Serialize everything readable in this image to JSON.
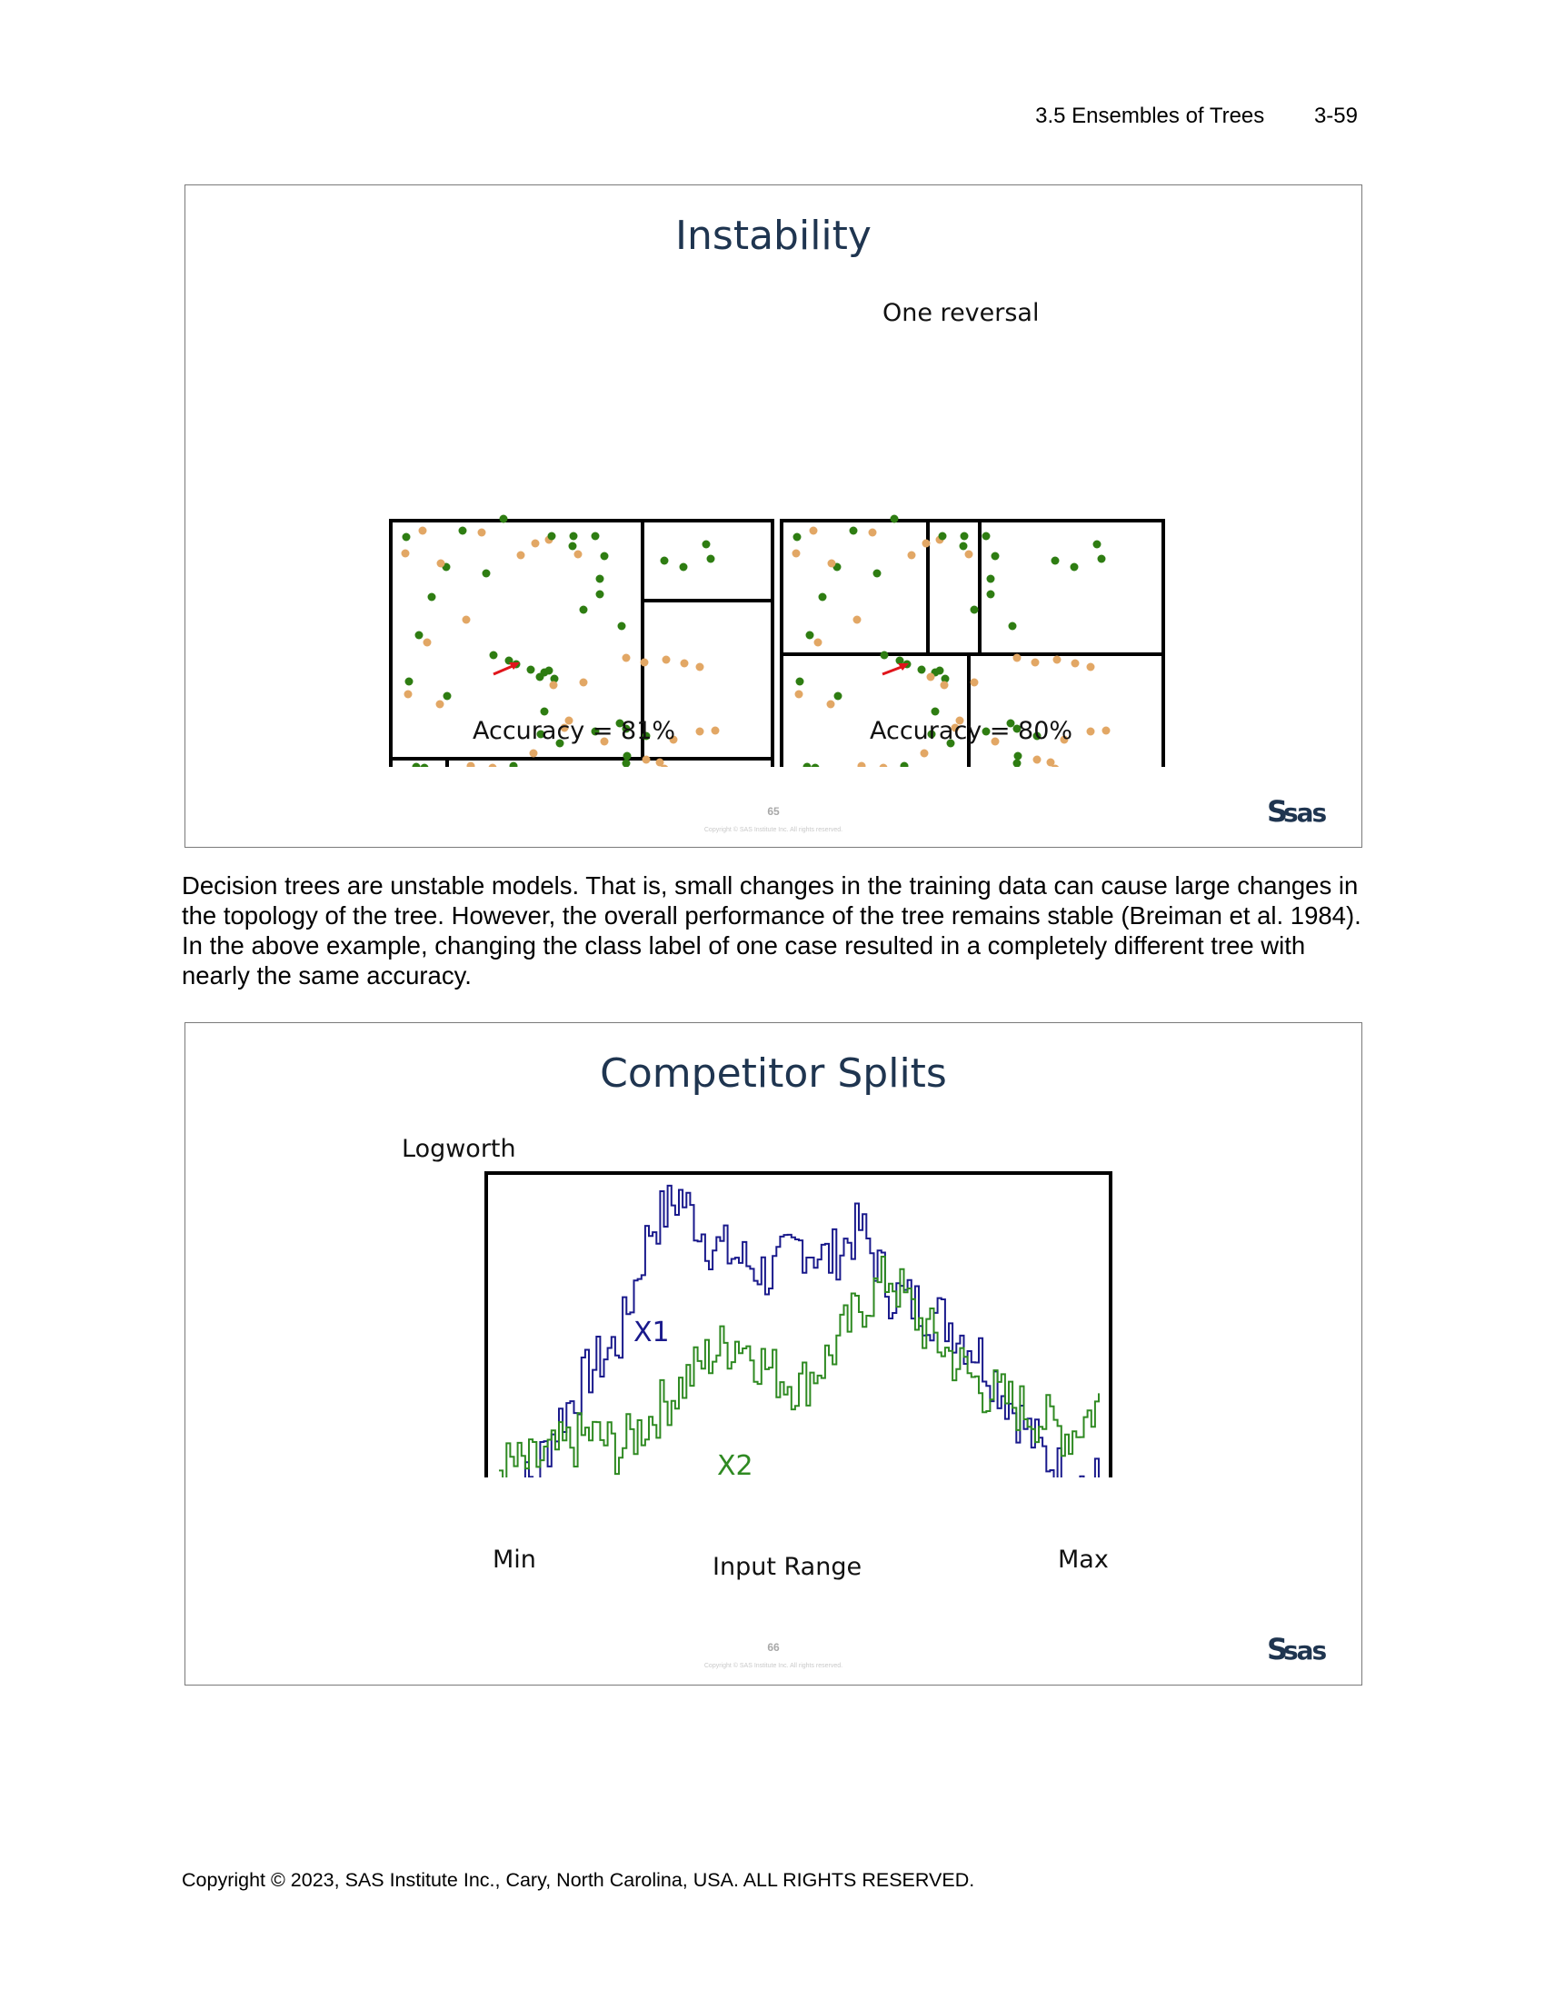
{
  "header": {
    "section": "3.5  Ensembles of Trees",
    "page": "3-59"
  },
  "slide1": {
    "title": "Instability",
    "right_caption": "One reversal",
    "left_accuracy": "Accuracy = 81%",
    "right_accuracy": "Accuracy = 80%",
    "number": "65",
    "copyright": "Copyright © SAS Institute Inc. All rights reserved.",
    "logo_text": "sas"
  },
  "paragraph": "Decision trees are unstable models. That is, small changes in the training data can cause large changes in the topology of the tree. However, the overall performance of the tree remains stable (Breiman et al. 1984). In the above example, changing the class label of one case resulted in a completely different tree with nearly the same accuracy.",
  "slide2": {
    "title": "Competitor Splits",
    "ylabel": "Logworth",
    "xlabel": "Input Range",
    "xmin_label": "Min",
    "xmax_label": "Max",
    "number": "66",
    "copyright": "Copyright © SAS Institute Inc. All rights reserved.",
    "logo_text": "sas"
  },
  "colors": {
    "green": "#2e7d12",
    "tan": "#e2a765",
    "title": "#1f3550",
    "x1": "#1a1a8c",
    "x2": "#2f8a22",
    "arrow": "#e0151b"
  },
  "chart_data": {
    "type": "line",
    "title": "Competitor Splits",
    "xlabel": "Input Range",
    "ylabel": "Logworth",
    "x": [
      0,
      5,
      10,
      15,
      20,
      25,
      30,
      35,
      40,
      45,
      50,
      55,
      60,
      65,
      70,
      75,
      80,
      85,
      90,
      95,
      100
    ],
    "xlim": [
      "Min",
      "Max"
    ],
    "series": [
      {
        "name": "X1",
        "values": [
          0.05,
          0.1,
          0.3,
          0.45,
          0.55,
          0.9,
          1.0,
          0.85,
          0.8,
          0.75,
          0.85,
          0.8,
          0.9,
          0.7,
          0.65,
          0.6,
          0.5,
          0.35,
          0.2,
          0.1,
          0.1
        ]
      },
      {
        "name": "X2",
        "values": [
          0.15,
          0.15,
          0.2,
          0.25,
          0.2,
          0.3,
          0.4,
          0.5,
          0.55,
          0.45,
          0.4,
          0.5,
          0.65,
          0.75,
          0.6,
          0.5,
          0.4,
          0.35,
          0.3,
          0.25,
          0.35
        ]
      }
    ],
    "grid": false,
    "legend": "inline labels"
  }
}
